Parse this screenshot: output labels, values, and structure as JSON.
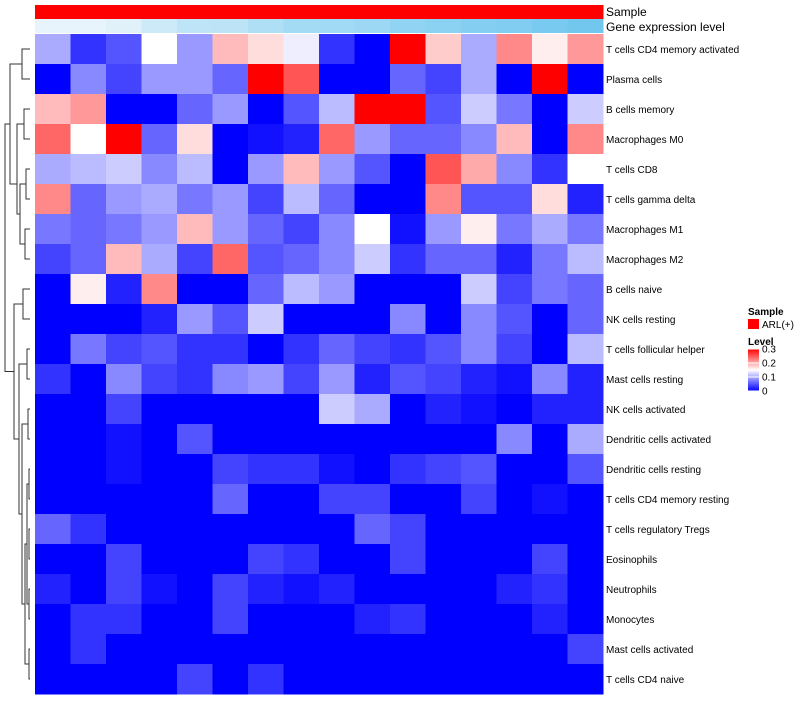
{
  "chart_data": {
    "type": "heatmap",
    "title": "",
    "xlabel": "",
    "ylabel": "",
    "rows": [
      "T cells CD4 memory activated",
      "Plasma cells",
      "B cells memory",
      "Macrophages M0",
      "T cells CD8",
      "T cells gamma delta",
      "Macrophages M1",
      "Macrophages M2",
      "B cells naive",
      "NK cells resting",
      "T cells follicular helper",
      "Mast cells resting",
      "NK cells activated",
      "Dendritic cells activated",
      "Dendritic cells resting",
      "T cells CD4 memory resting",
      "T cells regulatory  Tregs",
      "Eosinophils",
      "Neutrophils",
      "Monocytes",
      "Mast cells activated",
      "T cells CD4 naive"
    ],
    "columns_count": 16,
    "values": [
      [
        0.1,
        0.03,
        0.05,
        0.15,
        0.09,
        0.19,
        0.17,
        0.14,
        0.03,
        0.0,
        0.3,
        0.18,
        0.1,
        0.22,
        0.16,
        0.21
      ],
      [
        0.0,
        0.08,
        0.04,
        0.09,
        0.09,
        0.06,
        0.3,
        0.25,
        0.0,
        0.0,
        0.06,
        0.04,
        0.1,
        0.0,
        0.3,
        0.0
      ],
      [
        0.19,
        0.21,
        0.0,
        0.0,
        0.06,
        0.09,
        0.0,
        0.05,
        0.11,
        0.3,
        0.3,
        0.05,
        0.12,
        0.07,
        0.0,
        0.12
      ],
      [
        0.24,
        0.15,
        0.3,
        0.06,
        0.17,
        0.0,
        0.01,
        0.02,
        0.24,
        0.09,
        0.06,
        0.06,
        0.08,
        0.19,
        0.0,
        0.22
      ],
      [
        0.1,
        0.11,
        0.12,
        0.08,
        0.11,
        0.0,
        0.09,
        0.19,
        0.09,
        0.05,
        0.0,
        0.25,
        0.2,
        0.08,
        0.03,
        0.15
      ],
      [
        0.22,
        0.06,
        0.09,
        0.1,
        0.07,
        0.09,
        0.04,
        0.11,
        0.06,
        0.0,
        0.0,
        0.22,
        0.05,
        0.05,
        0.17,
        0.02
      ],
      [
        0.07,
        0.06,
        0.07,
        0.09,
        0.19,
        0.09,
        0.06,
        0.04,
        0.08,
        0.15,
        0.01,
        0.09,
        0.16,
        0.07,
        0.1,
        0.07
      ],
      [
        0.04,
        0.06,
        0.19,
        0.1,
        0.04,
        0.24,
        0.05,
        0.06,
        0.08,
        0.12,
        0.03,
        0.06,
        0.06,
        0.02,
        0.07,
        0.11
      ],
      [
        0.0,
        0.16,
        0.02,
        0.22,
        0.0,
        0.0,
        0.06,
        0.11,
        0.09,
        0.0,
        0.0,
        0.0,
        0.12,
        0.04,
        0.07,
        0.06
      ],
      [
        0.0,
        0.0,
        0.0,
        0.02,
        0.09,
        0.05,
        0.12,
        0.0,
        0.0,
        0.0,
        0.08,
        0.0,
        0.08,
        0.05,
        0.0,
        0.06
      ],
      [
        0.0,
        0.07,
        0.04,
        0.05,
        0.03,
        0.03,
        0.0,
        0.03,
        0.06,
        0.04,
        0.03,
        0.05,
        0.08,
        0.04,
        0.0,
        0.11
      ],
      [
        0.03,
        0.0,
        0.08,
        0.04,
        0.03,
        0.08,
        0.09,
        0.04,
        0.09,
        0.02,
        0.05,
        0.04,
        0.02,
        0.01,
        0.08,
        0.02
      ],
      [
        0.0,
        0.0,
        0.04,
        0.0,
        0.0,
        0.0,
        0.0,
        0.0,
        0.12,
        0.1,
        0.0,
        0.02,
        0.01,
        0.0,
        0.02,
        0.02
      ],
      [
        0.0,
        0.0,
        0.01,
        0.0,
        0.05,
        0.0,
        0.0,
        0.0,
        0.0,
        0.0,
        0.0,
        0.0,
        0.0,
        0.08,
        0.0,
        0.1
      ],
      [
        0.0,
        0.0,
        0.01,
        0.0,
        0.0,
        0.04,
        0.03,
        0.03,
        0.01,
        0.0,
        0.03,
        0.04,
        0.05,
        0.0,
        0.0,
        0.05
      ],
      [
        0.0,
        0.0,
        0.0,
        0.0,
        0.0,
        0.06,
        0.0,
        0.0,
        0.04,
        0.04,
        0.0,
        0.0,
        0.04,
        0.0,
        0.01,
        0.0
      ],
      [
        0.06,
        0.03,
        0.0,
        0.0,
        0.0,
        0.0,
        0.0,
        0.0,
        0.0,
        0.06,
        0.04,
        0.0,
        0.0,
        0.0,
        0.0,
        0.0
      ],
      [
        0.0,
        0.0,
        0.04,
        0.0,
        0.0,
        0.0,
        0.04,
        0.03,
        0.0,
        0.0,
        0.04,
        0.0,
        0.0,
        0.0,
        0.04,
        0.0
      ],
      [
        0.02,
        0.0,
        0.04,
        0.01,
        0.0,
        0.04,
        0.02,
        0.01,
        0.02,
        0.0,
        0.0,
        0.0,
        0.0,
        0.02,
        0.03,
        0.0
      ],
      [
        0.0,
        0.03,
        0.03,
        0.0,
        0.0,
        0.04,
        0.0,
        0.0,
        0.0,
        0.02,
        0.03,
        0.0,
        0.0,
        0.0,
        0.02,
        0.0
      ],
      [
        0.0,
        0.03,
        0.0,
        0.0,
        0.0,
        0.0,
        0.0,
        0.0,
        0.0,
        0.0,
        0.0,
        0.0,
        0.0,
        0.0,
        0.0,
        0.04
      ],
      [
        0.0,
        0.0,
        0.0,
        0.0,
        0.04,
        0.0,
        0.03,
        0.0,
        0.0,
        0.0,
        0.0,
        0.0,
        0.0,
        0.0,
        0.0,
        0.0
      ]
    ],
    "annotation_tracks": [
      "Sample",
      "Gene expression level"
    ],
    "sample_group_color": "#ff0000",
    "gene_expression_colors": [
      "#e8f4fb",
      "#e8f4fb",
      "#e0f1fa",
      "#cdeaf8",
      "#bee5f7",
      "#bce4f6",
      "#aedff5",
      "#a3dbf5",
      "#a1daf4",
      "#9cd8f4",
      "#90d3f2",
      "#8bd1f2",
      "#84cef2",
      "#81cdf1",
      "#78caf0",
      "#72c7ef"
    ],
    "legend_sample": {
      "title": "Sample",
      "label": "ARL(+)",
      "color": "#ff0000"
    },
    "legend_level": {
      "title": "Level",
      "ticks": [
        "0.3",
        "0.2",
        "0.1",
        "0"
      ],
      "tick_values": [
        0.3,
        0.2,
        0.1,
        0
      ],
      "min": 0,
      "max": 0.3
    },
    "colorscale": {
      "low": "#0000ff",
      "mid": "#ffffff",
      "high": "#ff0000",
      "mid_value": 0.15
    },
    "row_dendrogram": true
  }
}
